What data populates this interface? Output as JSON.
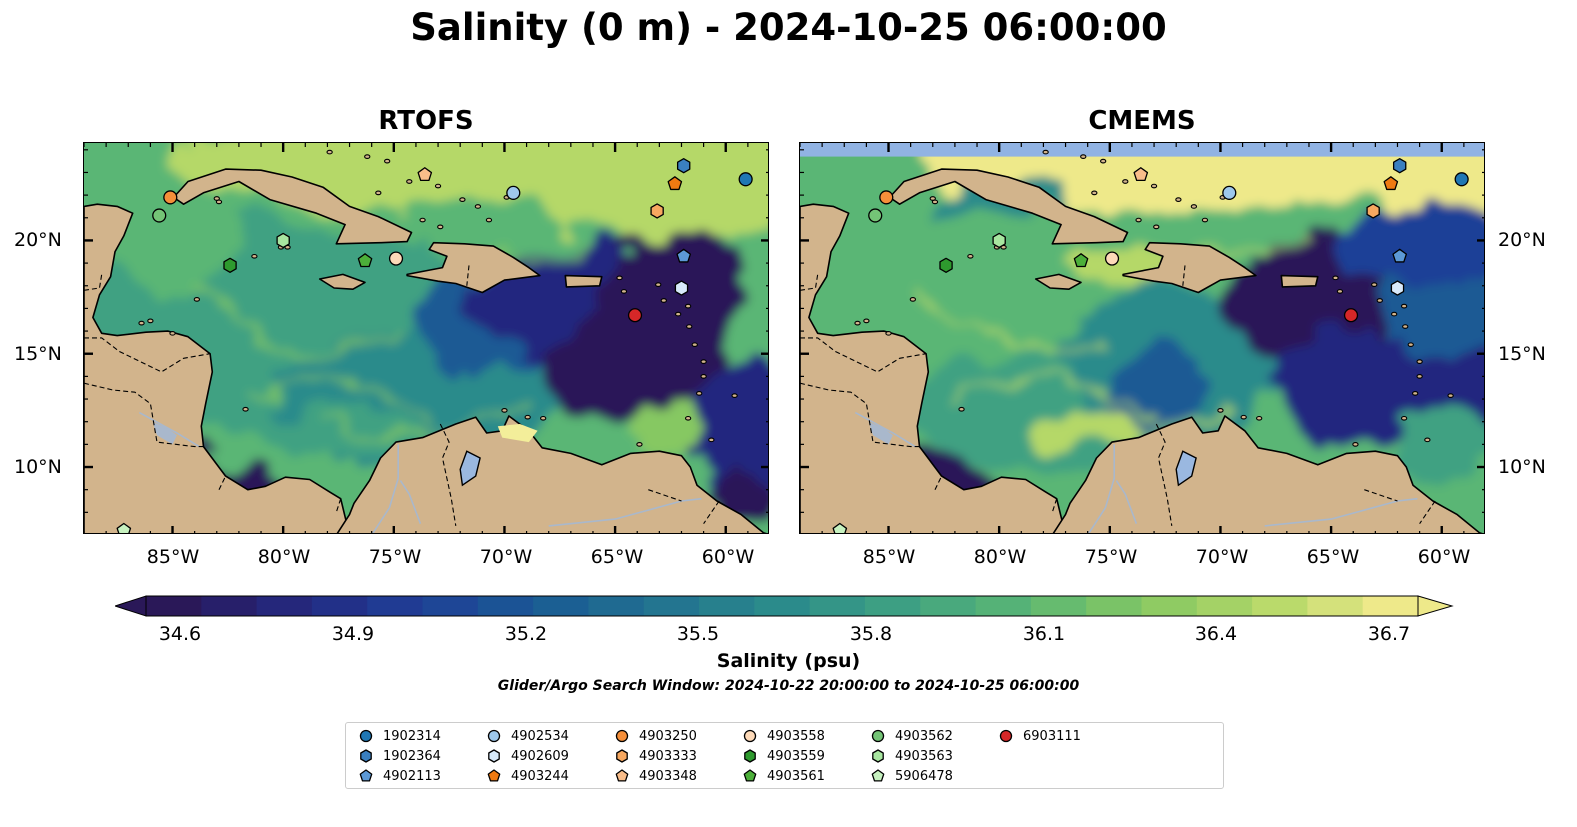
{
  "title": "Salinity (0 m) - 2024-10-25 06:00:00",
  "panels": [
    {
      "title": "RTOFS"
    },
    {
      "title": "CMEMS"
    }
  ],
  "axes": {
    "lat_labels": [
      "20°N",
      "15°N",
      "10°N"
    ],
    "lon_labels": [
      "85°W",
      "80°W",
      "75°W",
      "70°W",
      "65°W",
      "60°W"
    ]
  },
  "colorbar": {
    "label": "Salinity (psu)",
    "ticks": [
      "34.6",
      "34.9",
      "35.2",
      "35.5",
      "35.8",
      "36.1",
      "36.4",
      "36.7"
    ],
    "min": 34.6,
    "max": 36.7,
    "extend": "both",
    "colormap": [
      "#2a1858",
      "#24287f",
      "#1f3f97",
      "#1a5a94",
      "#227390",
      "#2b8b8b",
      "#3fa182",
      "#5ab674",
      "#86c862",
      "#b5d868",
      "#eee98a"
    ]
  },
  "subtitle": "Glider/Argo Search Window: 2024-10-22 20:00:00 to 2024-10-25 06:00:00",
  "colors": {
    "land": "#d2b48c",
    "lake": "#9ab8e0",
    "rivers": "#a9b8cc",
    "cmems_nodata": "#91b3e3"
  },
  "legend": {
    "items": [
      {
        "id": "1902314",
        "marker": "circle",
        "color": "#1f77b4"
      },
      {
        "id": "1902364",
        "marker": "hexagon",
        "color": "#3a7fc0"
      },
      {
        "id": "4902113",
        "marker": "pentagon",
        "color": "#5c99d6"
      },
      {
        "id": "4902534",
        "marker": "circle",
        "color": "#9ec8ec"
      },
      {
        "id": "4902609",
        "marker": "hexagon",
        "color": "#d8eafa"
      },
      {
        "id": "4903244",
        "marker": "pentagon",
        "color": "#ef7a12"
      },
      {
        "id": "4903250",
        "marker": "circle",
        "color": "#f58f3a"
      },
      {
        "id": "4903333",
        "marker": "hexagon",
        "color": "#f7a860"
      },
      {
        "id": "4903348",
        "marker": "pentagon",
        "color": "#f9bd8a"
      },
      {
        "id": "4903558",
        "marker": "circle",
        "color": "#fdd9b8"
      },
      {
        "id": "4903559",
        "marker": "hexagon",
        "color": "#2e9a2e"
      },
      {
        "id": "4903561",
        "marker": "pentagon",
        "color": "#4caf3a"
      },
      {
        "id": "4903562",
        "marker": "circle",
        "color": "#74c476"
      },
      {
        "id": "4903563",
        "marker": "hexagon",
        "color": "#a8e6a0"
      },
      {
        "id": "5906478",
        "marker": "pentagon",
        "color": "#c7f2c0"
      },
      {
        "id": "6903111",
        "marker": "circle",
        "color": "#d62728"
      }
    ]
  }
}
